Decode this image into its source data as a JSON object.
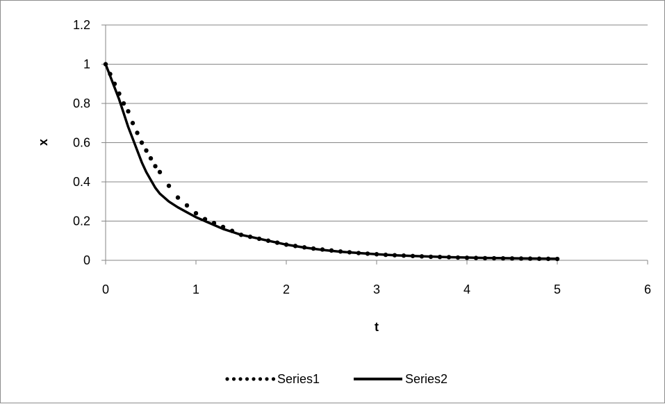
{
  "chart_data": {
    "type": "scatter",
    "title": "",
    "xlabel": "t",
    "ylabel": "x",
    "xlim": [
      0,
      6
    ],
    "ylim": [
      0,
      1.2
    ],
    "xticks": [
      0,
      1,
      2,
      3,
      4,
      5,
      6
    ],
    "yticks": [
      0,
      0.2,
      0.4,
      0.6,
      0.8,
      1,
      1.2
    ],
    "xtick_labels": [
      "0",
      "1",
      "2",
      "3",
      "4",
      "5",
      "6"
    ],
    "ytick_labels": [
      "0",
      "0.2",
      "0.4",
      "0.6",
      "0.8",
      "1",
      "1.2"
    ],
    "grid": "horizontal",
    "legend_position": "bottom",
    "series": [
      {
        "name": "Series1",
        "style": "dotted-markers",
        "color": "#000000",
        "x": [
          0,
          0.05,
          0.1,
          0.15,
          0.2,
          0.25,
          0.3,
          0.35,
          0.4,
          0.45,
          0.5,
          0.55,
          0.6,
          0.7,
          0.8,
          0.9,
          1.0,
          1.1,
          1.2,
          1.3,
          1.4,
          1.5,
          1.6,
          1.7,
          1.8,
          1.9,
          2.0,
          2.1,
          2.2,
          2.3,
          2.4,
          2.5,
          2.6,
          2.7,
          2.8,
          2.9,
          3.0,
          3.1,
          3.2,
          3.3,
          3.4,
          3.5,
          3.6,
          3.7,
          3.8,
          3.9,
          4.0,
          4.1,
          4.2,
          4.3,
          4.4,
          4.5,
          4.6,
          4.7,
          4.8,
          4.9,
          5.0
        ],
        "y": [
          1.0,
          0.95,
          0.9,
          0.85,
          0.8,
          0.76,
          0.7,
          0.65,
          0.6,
          0.56,
          0.52,
          0.48,
          0.45,
          0.38,
          0.32,
          0.28,
          0.24,
          0.21,
          0.19,
          0.17,
          0.15,
          0.13,
          0.12,
          0.11,
          0.1,
          0.09,
          0.08,
          0.073,
          0.066,
          0.06,
          0.055,
          0.05,
          0.045,
          0.041,
          0.037,
          0.034,
          0.031,
          0.028,
          0.026,
          0.024,
          0.022,
          0.02,
          0.018,
          0.017,
          0.016,
          0.014,
          0.013,
          0.012,
          0.011,
          0.0105,
          0.01,
          0.0095,
          0.009,
          0.0085,
          0.008,
          0.0075,
          0.007
        ]
      },
      {
        "name": "Series2",
        "style": "solid-line",
        "color": "#000000",
        "x": [
          0,
          0.05,
          0.1,
          0.15,
          0.2,
          0.25,
          0.3,
          0.35,
          0.4,
          0.45,
          0.5,
          0.55,
          0.6,
          0.7,
          0.8,
          0.9,
          1.0,
          1.1,
          1.2,
          1.3,
          1.4,
          1.5,
          1.6,
          1.7,
          1.8,
          1.9,
          2.0,
          2.2,
          2.4,
          2.6,
          2.8,
          3.0,
          3.2,
          3.4,
          3.6,
          3.8,
          4.0,
          4.2,
          4.4,
          4.6,
          4.8,
          5.0
        ],
        "y": [
          1.0,
          0.94,
          0.88,
          0.82,
          0.75,
          0.68,
          0.62,
          0.56,
          0.5,
          0.45,
          0.41,
          0.37,
          0.34,
          0.3,
          0.27,
          0.245,
          0.22,
          0.2,
          0.18,
          0.16,
          0.145,
          0.13,
          0.12,
          0.11,
          0.1,
          0.09,
          0.08,
          0.065,
          0.053,
          0.044,
          0.037,
          0.031,
          0.026,
          0.022,
          0.019,
          0.016,
          0.014,
          0.012,
          0.011,
          0.01,
          0.009,
          0.008
        ]
      }
    ]
  }
}
